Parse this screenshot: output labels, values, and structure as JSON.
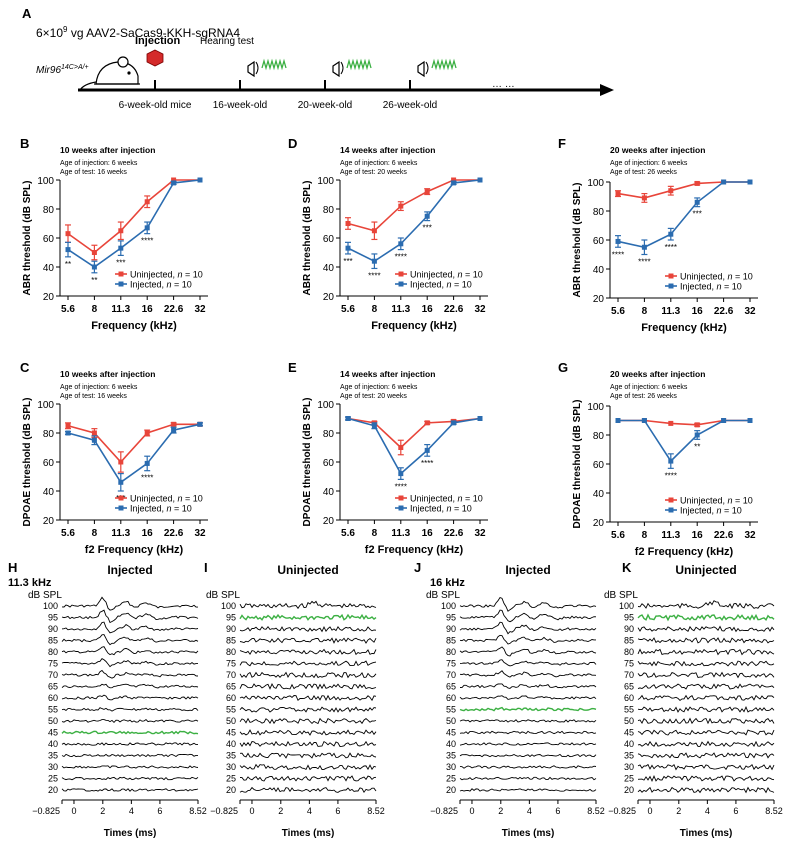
{
  "panel_letters": [
    "A",
    "B",
    "C",
    "D",
    "E",
    "F",
    "G",
    "H",
    "I",
    "J",
    "K"
  ],
  "timeline": {
    "title": "6×10",
    "title_exp": "9",
    "title_rest": " vg AAV2-SaCas9-KKH-sgRNA4",
    "genotype": "Mir96",
    "genotype_sup": "14C>A/+",
    "injection_label": "Injection",
    "hearing_label": "Hearing test",
    "ellipsis": "… …",
    "stage_labels": [
      "6-week-old mice",
      "16-week-old",
      "20-week-old",
      "26-week-old"
    ]
  },
  "legend": {
    "uninjected": "Uninjected, ",
    "injected": "Injected, ",
    "n_var": "n",
    "n_val": " = 10"
  },
  "line_charts": {
    "B": {
      "type": "line",
      "title": "10 weeks after injection",
      "sub1": "Age of injection: 6 weeks",
      "sub2": "Age of test: 16 weeks",
      "ylabel": "ABR threshold (dB SPL)",
      "xlabel": "Frequency (kHz)",
      "ylim": [
        20,
        100
      ],
      "yticks": [
        20,
        40,
        60,
        80,
        100
      ],
      "categories": [
        "5.6",
        "8",
        "11.3",
        "16",
        "22.6",
        "32"
      ],
      "series": [
        {
          "name": "Uninjected",
          "color": "#e8453a",
          "values": [
            63,
            50,
            65,
            85,
            100,
            100
          ],
          "err": [
            6,
            5,
            6,
            4,
            0,
            0
          ]
        },
        {
          "name": "Injected",
          "color": "#2b6cb0",
          "values": [
            52,
            40,
            53,
            67,
            98,
            100
          ],
          "err": [
            5,
            4,
            5,
            4,
            1,
            0
          ]
        }
      ],
      "stars": [
        "**",
        "**",
        "***",
        "****",
        "",
        ""
      ]
    },
    "D": {
      "type": "line",
      "title": "14 weeks after injection",
      "sub1": "Age of injection: 6 weeks",
      "sub2": "Age of test: 20 weeks",
      "ylabel": "ABR threshold (dB SPL)",
      "xlabel": "Frequency (kHz)",
      "ylim": [
        20,
        100
      ],
      "yticks": [
        20,
        40,
        60,
        80,
        100
      ],
      "categories": [
        "5.6",
        "8",
        "11.3",
        "16",
        "22.6",
        "32"
      ],
      "series": [
        {
          "name": "Uninjected",
          "color": "#e8453a",
          "values": [
            70,
            65,
            82,
            92,
            100,
            100
          ],
          "err": [
            4,
            6,
            3,
            2,
            0,
            0
          ]
        },
        {
          "name": "Injected",
          "color": "#2b6cb0",
          "values": [
            53,
            44,
            56,
            75,
            98,
            100
          ],
          "err": [
            4,
            5,
            4,
            3,
            1,
            0
          ]
        }
      ],
      "stars": [
        "***",
        "****",
        "****",
        "***",
        "",
        ""
      ]
    },
    "F": {
      "type": "line",
      "title": "20 weeks after injection",
      "sub1": "Age of injection: 6 weeks",
      "sub2": "Age of test: 26 weeks",
      "ylabel": "ABR threshold (dB SPL)",
      "xlabel": "Frequency (kHz)",
      "ylim": [
        20,
        100
      ],
      "yticks": [
        20,
        40,
        60,
        80,
        100
      ],
      "categories": [
        "5.6",
        "8",
        "11.3",
        "16",
        "22.6",
        "32"
      ],
      "series": [
        {
          "name": "Uninjected",
          "color": "#e8453a",
          "values": [
            92,
            89,
            94,
            99,
            100,
            100
          ],
          "err": [
            2,
            3,
            3,
            1,
            0,
            0
          ]
        },
        {
          "name": "Injected",
          "color": "#2b6cb0",
          "values": [
            59,
            55,
            64,
            86,
            100,
            100
          ],
          "err": [
            4,
            5,
            4,
            3,
            0,
            0
          ]
        }
      ],
      "stars": [
        "****",
        "****",
        "****",
        "***",
        "",
        ""
      ]
    },
    "C": {
      "type": "line",
      "title": "10 weeks after injection",
      "sub1": "Age of injection: 6 weeks",
      "sub2": "Age of test: 16 weeks",
      "ylabel": "DPOAE threshold (dB SPL)",
      "xlabel": "f2 Frequency (kHz)",
      "ylim": [
        20,
        100
      ],
      "yticks": [
        20,
        40,
        60,
        80,
        100
      ],
      "categories": [
        "5.6",
        "8",
        "11.3",
        "16",
        "22.6",
        "32"
      ],
      "series": [
        {
          "name": "Uninjected",
          "color": "#e8453a",
          "values": [
            85,
            80,
            60,
            80,
            86,
            86
          ],
          "err": [
            2,
            3,
            7,
            2,
            1,
            1
          ]
        },
        {
          "name": "Injected",
          "color": "#2b6cb0",
          "values": [
            80,
            75,
            46,
            59,
            82,
            86
          ],
          "err": [
            1,
            3,
            6,
            5,
            2,
            1
          ]
        }
      ],
      "stars": [
        "",
        "",
        "***",
        "****",
        "",
        ""
      ]
    },
    "E": {
      "type": "line",
      "title": "14 weeks after injection",
      "sub1": "Age of injection: 6 weeks",
      "sub2": "Age of test: 20 weeks",
      "ylabel": "DPOAE threshold (dB SPL)",
      "xlabel": "f2 Frequency (kHz)",
      "ylim": [
        20,
        100
      ],
      "yticks": [
        20,
        40,
        60,
        80,
        100
      ],
      "categories": [
        "5.6",
        "8",
        "11.3",
        "16",
        "22.6",
        "32"
      ],
      "series": [
        {
          "name": "Uninjected",
          "color": "#e8453a",
          "values": [
            90,
            87,
            70,
            87,
            88,
            90
          ],
          "err": [
            1,
            1,
            5,
            1,
            1,
            0
          ]
        },
        {
          "name": "Injected",
          "color": "#2b6cb0",
          "values": [
            90,
            85,
            52,
            68,
            87,
            90
          ],
          "err": [
            1,
            2,
            4,
            4,
            1,
            0
          ]
        }
      ],
      "stars": [
        "",
        "",
        "****",
        "****",
        "",
        ""
      ]
    },
    "G": {
      "type": "line",
      "title": "20 weeks after injection",
      "sub1": "Age of injection: 6 weeks",
      "sub2": "Age of test: 26 weeks",
      "ylabel": "DPOAE threshold (dB SPL)",
      "xlabel": "f2 Frequency (kHz)",
      "ylim": [
        20,
        100
      ],
      "yticks": [
        20,
        40,
        60,
        80,
        100
      ],
      "categories": [
        "5.6",
        "8",
        "11.3",
        "16",
        "22.6",
        "32"
      ],
      "series": [
        {
          "name": "Uninjected",
          "color": "#e8453a",
          "values": [
            90,
            90,
            88,
            87,
            90,
            90
          ],
          "err": [
            0,
            0,
            0,
            1,
            0,
            0
          ]
        },
        {
          "name": "Injected",
          "color": "#2b6cb0",
          "values": [
            90,
            90,
            62,
            80,
            90,
            90
          ],
          "err": [
            0,
            0,
            5,
            3,
            0,
            0
          ]
        }
      ],
      "stars": [
        "",
        "",
        "****",
        "**",
        "",
        ""
      ]
    }
  },
  "waveforms": {
    "xlabel": "Times (ms)",
    "xticks": [
      "−0.825",
      "0",
      "2",
      "4",
      "6",
      "8.52"
    ],
    "unit": "dB SPL",
    "levels": [
      "100",
      "95",
      "90",
      "85",
      "80",
      "75",
      "70",
      "65",
      "60",
      "55",
      "50",
      "45",
      "40",
      "35",
      "30",
      "25",
      "20"
    ],
    "panels": {
      "H": {
        "title": "Injected",
        "freq": "11.3 kHz",
        "green_level": "45"
      },
      "I": {
        "title": "Uninjected",
        "freq": "",
        "green_level": "95"
      },
      "J": {
        "title": "Injected",
        "freq": "16 kHz",
        "green_level": "55"
      },
      "K": {
        "title": "Uninjected",
        "freq": "",
        "green_level": "95"
      }
    }
  },
  "colors": {
    "uninjected": "#e8453a",
    "injected": "#2b6cb0",
    "threshold_trace": "#3cb043"
  }
}
